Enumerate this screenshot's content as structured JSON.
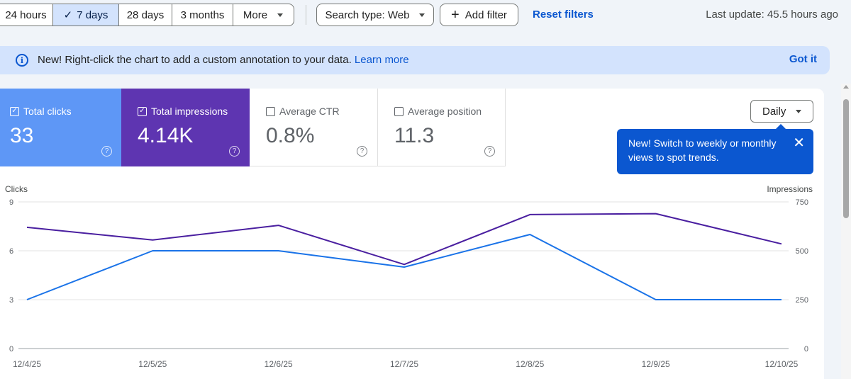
{
  "toolbar": {
    "ranges": [
      {
        "label": "24 hours",
        "selected": false
      },
      {
        "label": "7 days",
        "selected": true
      },
      {
        "label": "28 days",
        "selected": false
      },
      {
        "label": "3 months",
        "selected": false
      },
      {
        "label": "More",
        "selected": false
      }
    ],
    "search_type": "Search type: Web",
    "add_filter": "Add filter",
    "reset_filters": "Reset filters",
    "last_update": "Last update: 45.5 hours ago"
  },
  "banner": {
    "text": "New! Right-click the chart to add a custom annotation to your data.",
    "link": "Learn more",
    "action": "Got it"
  },
  "metrics": [
    {
      "label": "Total clicks",
      "value": "33",
      "checked": true,
      "color": "#5e97f6"
    },
    {
      "label": "Total impressions",
      "value": "4.14K",
      "checked": true,
      "color": "#5e35b1"
    },
    {
      "label": "Average CTR",
      "value": "0.8%",
      "checked": false
    },
    {
      "label": "Average position",
      "value": "11.3",
      "checked": false
    }
  ],
  "granularity": {
    "selected": "Daily"
  },
  "tooltip": {
    "text": "New! Switch to weekly or monthly views to spot trends."
  },
  "chart_data": {
    "type": "line",
    "x": [
      "12/4/25",
      "12/5/25",
      "12/6/25",
      "12/7/25",
      "12/8/25",
      "12/9/25",
      "12/10/25"
    ],
    "y_left_label": "Clicks",
    "y_right_label": "Impressions",
    "y_left_ticks": [
      0,
      3,
      6,
      9
    ],
    "y_right_ticks": [
      0,
      250,
      500,
      750
    ],
    "y_left_range": [
      0,
      9
    ],
    "y_right_range": [
      0,
      750
    ],
    "series": [
      {
        "name": "Total clicks",
        "axis": "left",
        "color": "#1a73e8",
        "values": [
          3,
          6,
          6,
          5,
          7,
          3,
          3
        ]
      },
      {
        "name": "Total impressions",
        "axis": "right",
        "color": "#4a1fa0",
        "values": [
          620,
          555,
          630,
          430,
          685,
          690,
          535
        ]
      }
    ],
    "grid": true
  }
}
